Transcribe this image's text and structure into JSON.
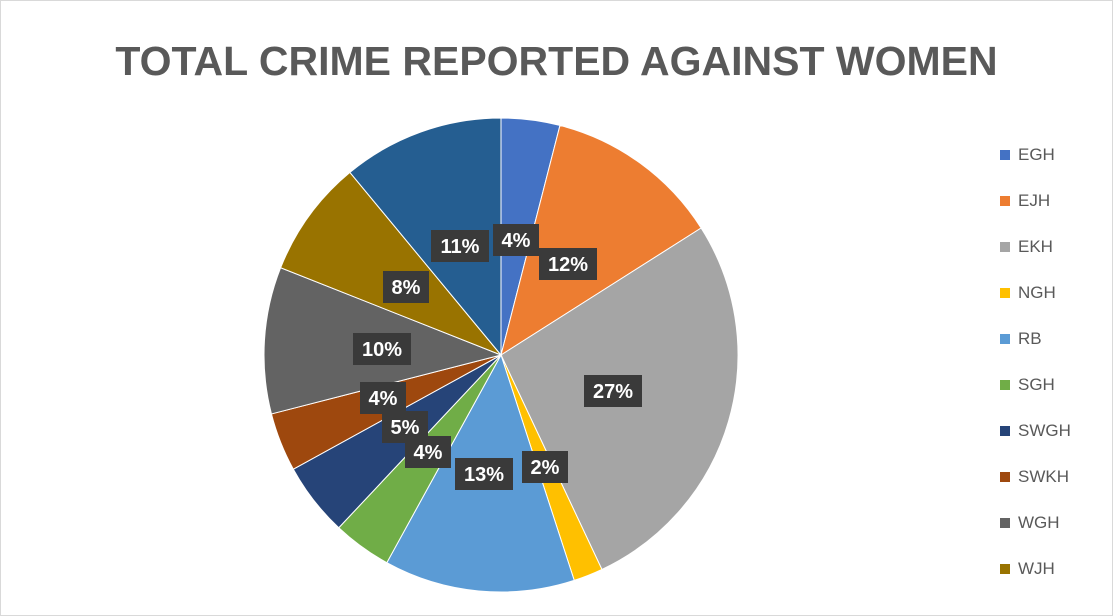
{
  "chart_data": {
    "type": "pie",
    "title": "TOTAL CRIME REPORTED AGAINST WOMEN",
    "categories": [
      "EGH",
      "EJH",
      "EKH",
      "NGH",
      "RB",
      "SGH",
      "SWGH",
      "SWKH",
      "WGH",
      "WJH",
      "(unlabeled)"
    ],
    "values": [
      4,
      12,
      27,
      2,
      13,
      4,
      5,
      4,
      10,
      8,
      11
    ],
    "data_labels": [
      "4%",
      "12%",
      "27%",
      "2%",
      "13%",
      "4%",
      "5%",
      "4%",
      "10%",
      "8%",
      "11%"
    ],
    "colors": [
      "#4472C4",
      "#ED7D31",
      "#A5A5A5",
      "#FFC000",
      "#5B9BD5",
      "#70AD47",
      "#264478",
      "#9E480E",
      "#636363",
      "#997300",
      "#255E91"
    ],
    "legend_position": "right",
    "legend": [
      "EGH",
      "EJH",
      "EKH",
      "NGH",
      "RB",
      "SGH",
      "SWGH",
      "SWKH",
      "WGH",
      "WJH"
    ]
  }
}
